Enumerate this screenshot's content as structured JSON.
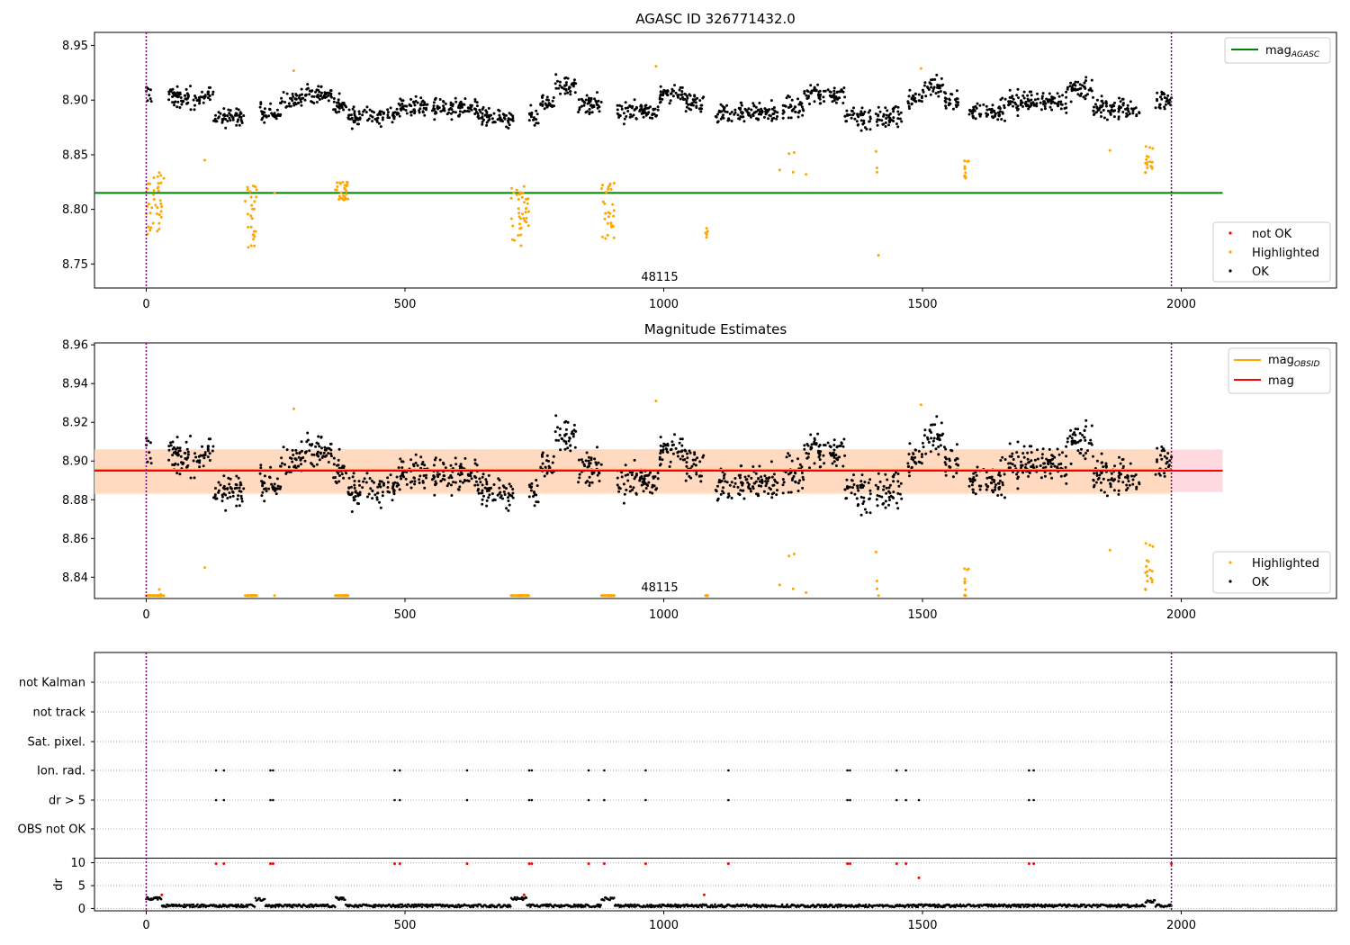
{
  "panel1": {
    "title": "AGASC ID 326771432.0",
    "obsid_label": "48115",
    "y_ticks": [
      "8.75",
      "8.80",
      "8.85",
      "8.90",
      "8.95"
    ],
    "x_ticks": [
      "0",
      "500",
      "1000",
      "1500",
      "2000"
    ],
    "legend_line": {
      "label_base": "mag",
      "label_sub": "AGASC"
    },
    "legend_points": [
      "not OK",
      "Highlighted",
      "OK"
    ]
  },
  "panel2": {
    "title": "Magnitude Estimates",
    "obsid_label": "48115",
    "y_ticks": [
      "8.84",
      "8.86",
      "8.88",
      "8.90",
      "8.92",
      "8.94",
      "8.96"
    ],
    "x_ticks": [
      "0",
      "500",
      "1000",
      "1500",
      "2000"
    ],
    "legend_lines": [
      {
        "label_base": "mag",
        "label_sub": "OBSID"
      },
      {
        "label_base": "mag",
        "label_sub": ""
      }
    ],
    "legend_points": [
      "Highlighted",
      "OK"
    ]
  },
  "panel3": {
    "flag_labels": [
      "not Kalman",
      "not track",
      "Sat. pixel.",
      "Ion. rad.",
      "dr > 5",
      "OBS not OK"
    ],
    "dr_ylabel": "dr",
    "dr_ticks": [
      "0",
      "5",
      "10"
    ],
    "x_ticks": [
      "0",
      "500",
      "1000",
      "1500",
      "2000"
    ]
  },
  "colors": {
    "ok": "#000000",
    "highlighted": "#ffa500",
    "not_ok": "#ff0000",
    "mag_agasc": "#008000",
    "mag_obsid": "#ffa500",
    "mag": "#ff0000",
    "obs_boundary": "#800080",
    "band_mag": "#ffc0cb",
    "band_obsid": "#ffdab9"
  },
  "chart_data": [
    {
      "type": "scatter",
      "title": "AGASC ID 326771432.0",
      "xlim": [
        -100,
        2300
      ],
      "ylim": [
        8.728,
        8.962
      ],
      "obs_boundaries": [
        0,
        1981
      ],
      "mag_agasc": 8.815,
      "series": [
        {
          "name": "OK",
          "segments": [
            {
              "x": [
                0,
                10
              ],
              "mean": 8.905
            },
            {
              "x": [
                40,
                130
              ],
              "mean": 8.902
            },
            {
              "x": [
                130,
                190
              ],
              "mean": 8.884
            },
            {
              "x": [
                220,
                260
              ],
              "mean": 8.888
            },
            {
              "x": [
                260,
                300
              ],
              "mean": 8.9
            },
            {
              "x": [
                300,
                360
              ],
              "mean": 8.905
            },
            {
              "x": [
                360,
                390
              ],
              "mean": 8.895
            },
            {
              "x": [
                390,
                480
              ],
              "mean": 8.885
            },
            {
              "x": [
                480,
                560
              ],
              "mean": 8.893
            },
            {
              "x": [
                560,
                640
              ],
              "mean": 8.893
            },
            {
              "x": [
                640,
                710
              ],
              "mean": 8.885
            },
            {
              "x": [
                740,
                760
              ],
              "mean": 8.885
            },
            {
              "x": [
                760,
                790
              ],
              "mean": 8.898
            },
            {
              "x": [
                790,
                830
              ],
              "mean": 8.912
            },
            {
              "x": [
                830,
                880
              ],
              "mean": 8.895
            },
            {
              "x": [
                910,
                990
              ],
              "mean": 8.89
            },
            {
              "x": [
                990,
                1040
              ],
              "mean": 8.905
            },
            {
              "x": [
                1040,
                1080
              ],
              "mean": 8.897
            },
            {
              "x": [
                1100,
                1220
              ],
              "mean": 8.888
            },
            {
              "x": [
                1230,
                1270
              ],
              "mean": 8.893
            },
            {
              "x": [
                1270,
                1350
              ],
              "mean": 8.905
            },
            {
              "x": [
                1350,
                1400
              ],
              "mean": 8.884
            },
            {
              "x": [
                1410,
                1460
              ],
              "mean": 8.885
            },
            {
              "x": [
                1470,
                1500
              ],
              "mean": 8.9
            },
            {
              "x": [
                1500,
                1540
              ],
              "mean": 8.912
            },
            {
              "x": [
                1540,
                1570
              ],
              "mean": 8.9
            },
            {
              "x": [
                1590,
                1660
              ],
              "mean": 8.89
            },
            {
              "x": [
                1660,
                1780
              ],
              "mean": 8.898
            },
            {
              "x": [
                1780,
                1830
              ],
              "mean": 8.91
            },
            {
              "x": [
                1830,
                1920
              ],
              "mean": 8.893
            },
            {
              "x": [
                1950,
                1981
              ],
              "mean": 8.9
            }
          ],
          "scatter_sd": 0.008
        },
        {
          "name": "Highlighted",
          "clusters": [
            {
              "x": [
                0,
                35
              ],
              "y": [
                8.775,
                8.835
              ]
            },
            {
              "x": [
                190,
                215
              ],
              "y": [
                8.765,
                8.822
              ]
            },
            {
              "x": [
                365,
                390
              ],
              "y": [
                8.806,
                8.826
              ]
            },
            {
              "x": [
                705,
                740
              ],
              "y": [
                8.765,
                8.82
              ]
            },
            {
              "x": [
                880,
                905
              ],
              "y": [
                8.773,
                8.825
              ]
            },
            {
              "x": [
                1080,
                1085
              ],
              "y": [
                8.773,
                8.784
              ]
            },
            {
              "x": [
                1580,
                1590
              ],
              "y": [
                8.827,
                8.846
              ]
            },
            {
              "x": [
                1930,
                1945
              ],
              "y": [
                8.833,
                8.858
              ]
            }
          ],
          "points": [
            {
              "x": 113,
              "y": 8.845
            },
            {
              "x": 248,
              "y": 8.815
            },
            {
              "x": 285,
              "y": 8.927
            },
            {
              "x": 730,
              "y": 8.821
            },
            {
              "x": 985,
              "y": 8.931
            },
            {
              "x": 1224,
              "y": 8.836
            },
            {
              "x": 1242,
              "y": 8.851
            },
            {
              "x": 1250,
              "y": 8.834
            },
            {
              "x": 1252,
              "y": 8.852
            },
            {
              "x": 1275,
              "y": 8.832
            },
            {
              "x": 1410,
              "y": 8.853
            },
            {
              "x": 1412,
              "y": 8.834
            },
            {
              "x": 1412,
              "y": 8.838
            },
            {
              "x": 1415,
              "y": 8.758
            },
            {
              "x": 1497,
              "y": 8.929
            },
            {
              "x": 1862,
              "y": 8.854
            }
          ]
        }
      ]
    },
    {
      "type": "scatter",
      "title": "Magnitude Estimates",
      "xlim": [
        -100,
        2300
      ],
      "ylim": [
        8.829,
        8.961
      ],
      "obs_boundaries": [
        0,
        1981
      ],
      "mag": 8.895,
      "mag_band": [
        8.884,
        8.906
      ],
      "mag_obsid": 8.8955,
      "mag_obsid_band": [
        8.883,
        8.906
      ],
      "note": "same OK points as panel 1; highlighted points below axis floor are clipped to the bottom edge"
    },
    {
      "type": "scatter",
      "xlim": [
        -100,
        2300
      ],
      "flag_rows": {
        "Ion. rad.": [
          135,
          150,
          240,
          245,
          480,
          490,
          620,
          740,
          745,
          855,
          885,
          965,
          1125,
          1355,
          1360,
          1450,
          1468,
          1706,
          1715
        ],
        "dr > 5": [
          135,
          150,
          240,
          245,
          480,
          490,
          620,
          740,
          745,
          855,
          885,
          965,
          1125,
          1355,
          1360,
          1450,
          1468,
          1493,
          1706,
          1715
        ],
        "not Kalman": [
          1981
        ]
      },
      "dr_ylim": [
        -0.5,
        11
      ],
      "dr_typical": 0.6,
      "dr_raised": [
        {
          "x": [
            0,
            30
          ],
          "y": 2.2
        },
        {
          "x": [
            210,
            230
          ],
          "y": 2.0
        },
        {
          "x": [
            365,
            385
          ],
          "y": 2.2
        },
        {
          "x": [
            705,
            735
          ],
          "y": 2.2
        },
        {
          "x": [
            880,
            905
          ],
          "y": 2.1
        },
        {
          "x": [
            1930,
            1950
          ],
          "y": 1.6
        }
      ],
      "dr_clipped_x": [
        135,
        150,
        240,
        245,
        480,
        490,
        620,
        740,
        745,
        855,
        885,
        965,
        1125,
        1355,
        1360,
        1450,
        1468,
        1706,
        1715,
        1981
      ],
      "dr_red_points": [
        {
          "x": 30,
          "y": 3.0
        },
        {
          "x": 730,
          "y": 3.0
        },
        {
          "x": 1078,
          "y": 3.0
        },
        {
          "x": 1493,
          "y": 6.7
        }
      ]
    }
  ]
}
